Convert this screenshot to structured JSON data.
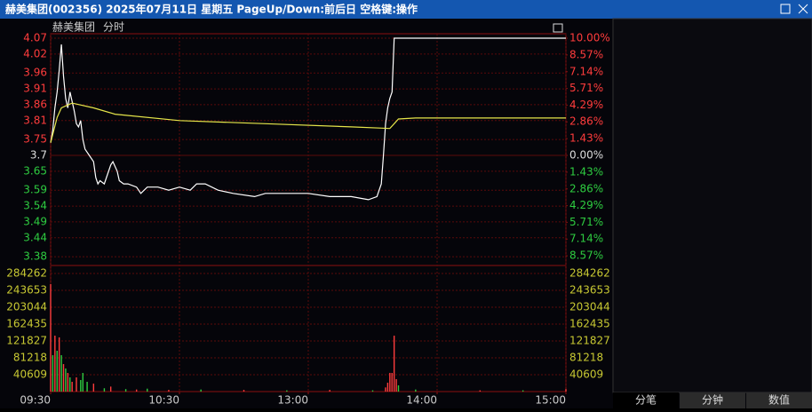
{
  "window": {
    "title": "赫美集团(002356)  2025年07月11日 星期五 PageUp/Down:前后日 空格键:操作"
  },
  "chart_data": {
    "type": "line",
    "title": "赫美集团",
    "subtitle": "分时",
    "xlim": [
      0,
      240
    ],
    "xticks": [
      {
        "value": 0,
        "label": "09:30"
      },
      {
        "value": 60,
        "label": "10:30"
      },
      {
        "value": 120,
        "label": "13:00"
      },
      {
        "value": 180,
        "label": "14:00"
      },
      {
        "value": 240,
        "label": "15:00"
      }
    ],
    "ylim": [
      3.33,
      4.07
    ],
    "yticks": [
      4.07,
      4.02,
      3.96,
      3.91,
      3.86,
      3.81,
      3.75,
      3.7,
      3.65,
      3.59,
      3.54,
      3.49,
      3.44,
      3.38
    ],
    "y2lim": [
      -10,
      10
    ],
    "y2ticks": [
      {
        "value": 10,
        "label": "10.00%"
      },
      {
        "value": 8.57,
        "label": "8.57%"
      },
      {
        "value": 7.14,
        "label": "7.14%"
      },
      {
        "value": 5.71,
        "label": "5.71%"
      },
      {
        "value": 4.29,
        "label": "4.29%"
      },
      {
        "value": 2.86,
        "label": "2.86%"
      },
      {
        "value": 1.43,
        "label": "1.43%"
      },
      {
        "value": 0,
        "label": "0.00%"
      },
      {
        "value": -1.43,
        "label": "1.43%"
      },
      {
        "value": -2.86,
        "label": "2.86%"
      },
      {
        "value": -4.29,
        "label": "4.29%"
      },
      {
        "value": -5.71,
        "label": "5.71%"
      },
      {
        "value": -7.14,
        "label": "7.14%"
      },
      {
        "value": -8.57,
        "label": "8.57%"
      }
    ],
    "series": [
      {
        "color": "#ffffff",
        "x": [
          0,
          1,
          2,
          3,
          4,
          5,
          6,
          7,
          8,
          9,
          10,
          11,
          12,
          13,
          14,
          15,
          16,
          18,
          20,
          21,
          22,
          23,
          25,
          26,
          28,
          29,
          31,
          32,
          34,
          36,
          40,
          42,
          45,
          50,
          55,
          60,
          65,
          68,
          72,
          78,
          85,
          95,
          100,
          110,
          120,
          130,
          140,
          148,
          152,
          154,
          155,
          156,
          157,
          158,
          159,
          160,
          240
        ],
        "values": [
          3.74,
          3.78,
          3.85,
          3.9,
          3.97,
          4.05,
          3.95,
          3.88,
          3.85,
          3.9,
          3.87,
          3.84,
          3.8,
          3.79,
          3.81,
          3.75,
          3.72,
          3.7,
          3.68,
          3.63,
          3.61,
          3.62,
          3.61,
          3.63,
          3.67,
          3.68,
          3.65,
          3.62,
          3.61,
          3.61,
          3.6,
          3.58,
          3.6,
          3.6,
          3.59,
          3.6,
          3.59,
          3.61,
          3.61,
          3.59,
          3.58,
          3.57,
          3.58,
          3.58,
          3.58,
          3.57,
          3.57,
          3.56,
          3.57,
          3.61,
          3.7,
          3.8,
          3.85,
          3.88,
          3.9,
          4.07,
          4.07
        ]
      },
      {
        "color": "#e6e64a",
        "x": [
          0,
          3,
          5,
          10,
          20,
          30,
          60,
          100,
          140,
          158,
          160,
          162,
          170,
          240
        ],
        "values": [
          3.74,
          3.82,
          3.85,
          3.865,
          3.85,
          3.83,
          3.81,
          3.8,
          3.79,
          3.785,
          3.8,
          3.815,
          3.818,
          3.818
        ]
      }
    ],
    "volume": {
      "ylim": [
        0,
        284262
      ],
      "yticks": [
        284262,
        243653,
        203044,
        162435,
        121827,
        81218,
        40609
      ],
      "x": [
        0,
        1,
        2,
        3,
        4,
        5,
        6,
        7,
        8,
        9,
        10,
        12,
        14,
        15,
        17,
        20,
        25,
        28,
        35,
        40,
        45,
        55,
        70,
        90,
        110,
        130,
        150,
        156,
        157,
        158,
        159,
        160,
        161,
        162,
        170,
        200,
        220,
        240
      ],
      "values": [
        258600,
        87600,
        134600,
        98300,
        130400,
        87600,
        66200,
        55600,
        44900,
        34200,
        23500,
        34200,
        27800,
        44900,
        23500,
        19200,
        8000,
        12000,
        6000,
        5000,
        7000,
        4000,
        5000,
        4000,
        3000,
        4000,
        3000,
        10000,
        21400,
        45000,
        44900,
        134600,
        30000,
        15000,
        5000,
        3000,
        3000,
        6000
      ],
      "colors": [
        "#ff3c3c",
        "#2ecc40",
        "#ff3c3c",
        "#2ecc40",
        "#ff3c3c",
        "#2ecc40",
        "#ff3c3c",
        "#2ecc40",
        "#ff3c3c",
        "#2ecc40",
        "#ff3c3c",
        "#ff3c3c",
        "#2ecc40",
        "#2ecc40",
        "#2ecc40",
        "#ff3c3c",
        "#2ecc40",
        "#ff3c3c",
        "#2ecc40",
        "#ff3c3c",
        "#2ecc40",
        "#ff3c3c",
        "#2ecc40",
        "#ff3c3c",
        "#2ecc40",
        "#ff3c3c",
        "#2ecc40",
        "#ff3c3c",
        "#ff3c3c",
        "#ff3c3c",
        "#ff3c3c",
        "#ff3c3c",
        "#ff3c3c",
        "#2ecc40",
        "#2ecc40",
        "#ff3c3c",
        "#2ecc40",
        "#ff3c3c"
      ]
    },
    "grid": true
  },
  "tabs": [
    "分笔",
    "分钟",
    "数值"
  ]
}
